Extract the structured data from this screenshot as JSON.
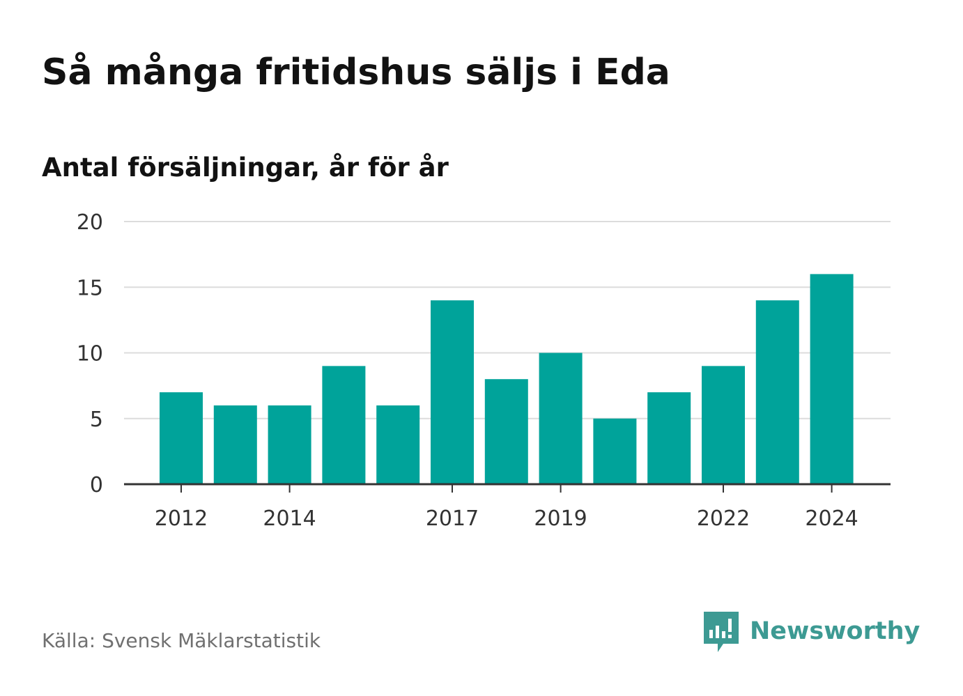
{
  "title": "Så många fritidshus säljs i Eda",
  "subtitle": "Antal försäljningar, år för år",
  "source": "Källa: Svensk Mäklarstatistik",
  "brand": {
    "name": "Newsworthy",
    "icon": "newsworthy-logo-icon",
    "color": "#3d9a93"
  },
  "colors": {
    "bar": "#00a39a",
    "gridline": "#dcdcdc",
    "axis": "#333333",
    "text": "#121212",
    "muted": "#707070"
  },
  "chart_data": {
    "type": "bar",
    "categories": [
      "2012",
      "2013",
      "2014",
      "2015",
      "2016",
      "2017",
      "2018",
      "2019",
      "2020",
      "2021",
      "2022",
      "2023",
      "2024"
    ],
    "values": [
      7,
      6,
      6,
      9,
      6,
      14,
      8,
      10,
      5,
      7,
      9,
      14,
      16
    ],
    "x_tick_labels": [
      "2012",
      "2014",
      "2017",
      "2019",
      "2022",
      "2024"
    ],
    "y_ticks": [
      "0",
      "5",
      "10",
      "15",
      "20"
    ],
    "ylim": [
      0,
      20
    ],
    "grid": true,
    "legend": "none"
  }
}
